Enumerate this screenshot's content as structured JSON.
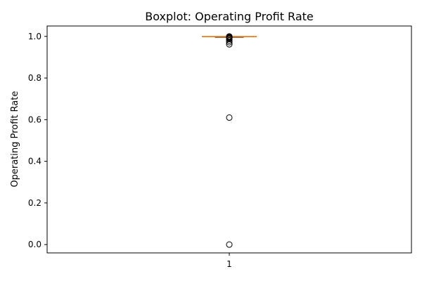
{
  "chart_data": {
    "type": "boxplot",
    "title": "Boxplot:  Operating Profit Rate",
    "xlabel": "",
    "ylabel": "Operating Profit Rate",
    "ylim": [
      -0.04,
      1.05
    ],
    "yticks": [
      0.0,
      0.2,
      0.4,
      0.6,
      0.8,
      1.0
    ],
    "ytick_labels": [
      "0.0",
      "0.2",
      "0.4",
      "0.6",
      "0.8",
      "1.0"
    ],
    "xtick_labels": [
      "1"
    ],
    "grid": false,
    "series": [
      {
        "position": 1,
        "min": 0.9985,
        "q1": 0.9988,
        "median": 0.9991,
        "q3": 0.9993,
        "max": 0.9996,
        "outliers": [
          0.0,
          0.61,
          0.962,
          0.972,
          0.98,
          0.987,
          0.991,
          0.994,
          0.997,
          0.999,
          1.0
        ]
      }
    ],
    "colors": {
      "box": "#000000",
      "median": "#ff7f0e",
      "outlier_edge": "#000000"
    }
  }
}
